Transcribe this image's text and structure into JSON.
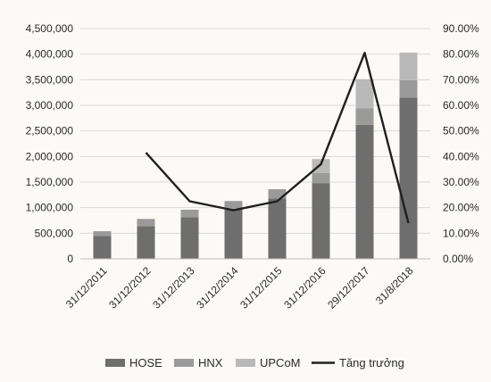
{
  "chart_data": {
    "type": "bar",
    "stacked": true,
    "categories": [
      "31/12/2011",
      "31/12/2012",
      "31/12/2013",
      "31/12/2014",
      "31/12/2015",
      "31/12/2016",
      "29/12/2017",
      "31/8/2018"
    ],
    "series": [
      {
        "name": "HOSE",
        "kind": "bar",
        "axis": "left",
        "color": "#6e6e6e",
        "values": [
          450000,
          640000,
          810000,
          980000,
          1180000,
          1480000,
          2620000,
          3150000
        ]
      },
      {
        "name": "HNX",
        "kind": "bar",
        "axis": "left",
        "color": "#9a9a9a",
        "values": [
          90000,
          140000,
          150000,
          150000,
          180000,
          200000,
          320000,
          340000
        ]
      },
      {
        "name": "UPCoM",
        "kind": "bar",
        "axis": "left",
        "color": "#b9b9b9",
        "values": [
          0,
          0,
          0,
          0,
          0,
          270000,
          570000,
          540000
        ]
      },
      {
        "name": "Tăng trưởng",
        "kind": "line",
        "axis": "right",
        "color": "#1f1f1f",
        "values": [
          null,
          41.5,
          22.5,
          19,
          22.5,
          37,
          80.5,
          14
        ]
      }
    ],
    "y_left": {
      "min": 0,
      "max": 4500000,
      "step": 500000,
      "tick_labels": [
        "0",
        "500,000",
        "1,000,000",
        "1,500,000",
        "2,000,000",
        "2,500,000",
        "3,000,000",
        "3,500,000",
        "4,000,000",
        "4,500,000"
      ]
    },
    "y_right": {
      "min": 0,
      "max": 90,
      "step": 10,
      "tick_labels": [
        "0.00%",
        "10.00%",
        "20.00%",
        "30.00%",
        "40.00%",
        "50.00%",
        "60.00%",
        "70.00%",
        "80.00%",
        "90.00%"
      ]
    },
    "title": "",
    "xlabel": "",
    "ylabel": "",
    "grid": true,
    "legend": "bottom"
  }
}
